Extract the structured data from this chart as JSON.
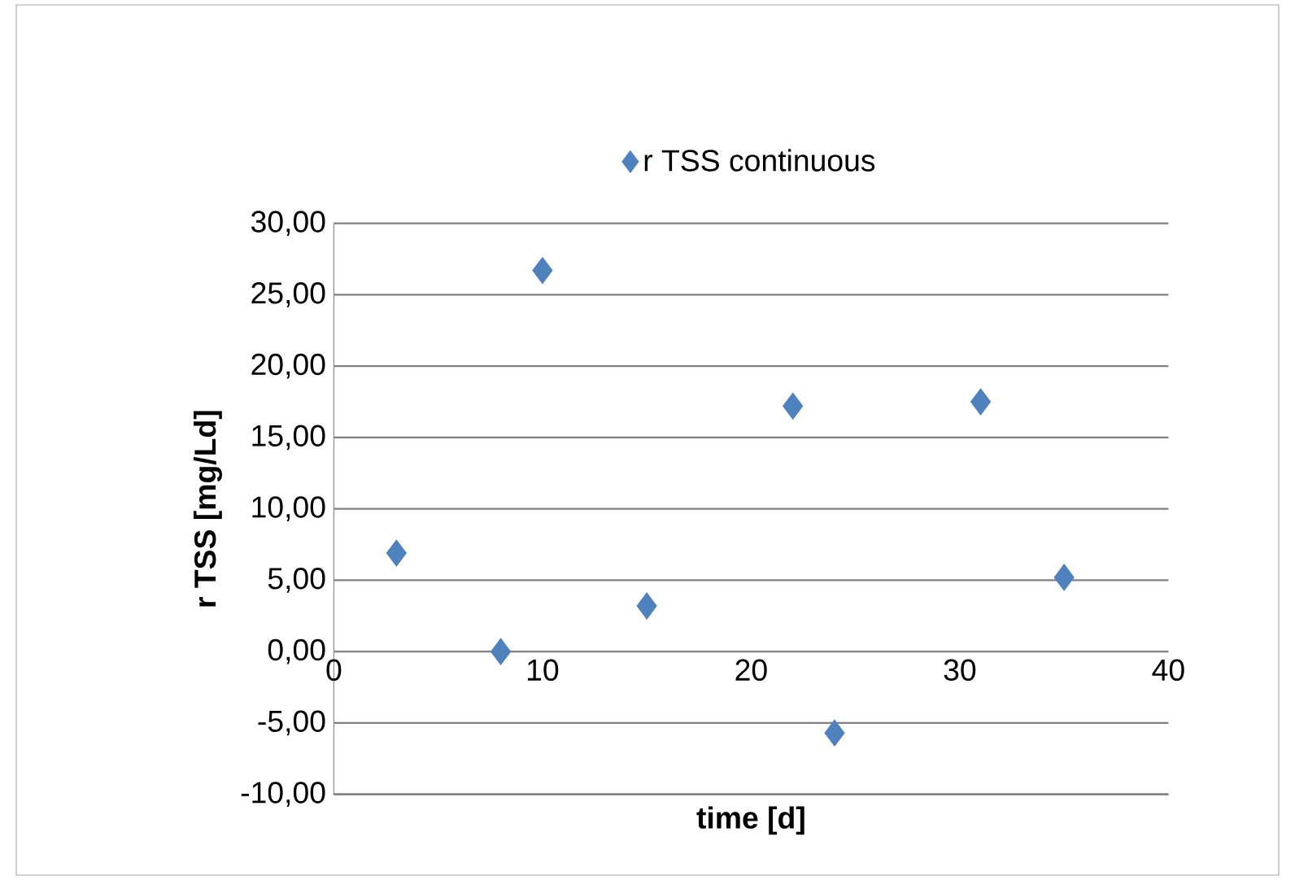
{
  "chart_data": {
    "type": "scatter",
    "xlabel": "time [d]",
    "ylabel": "r TSS [mg/Ld]",
    "series": [
      {
        "name": "r TSS continuous",
        "color": "#4f81bd",
        "x": [
          3,
          8,
          10,
          15,
          22,
          24,
          31,
          35
        ],
        "values": [
          6.9,
          0.0,
          26.7,
          3.2,
          17.2,
          -5.7,
          17.5,
          5.2
        ]
      }
    ],
    "xlim": [
      0,
      40
    ],
    "xticks": [
      0,
      10,
      20,
      30,
      40
    ],
    "ylim": [
      -10,
      30
    ],
    "yticks": [
      {
        "value": -10,
        "label": "-10,00"
      },
      {
        "value": -5,
        "label": "-5,00"
      },
      {
        "value": 0,
        "label": "0,00"
      },
      {
        "value": 5,
        "label": "5,00"
      },
      {
        "value": 10,
        "label": "10,00"
      },
      {
        "value": 15,
        "label": "15,00"
      },
      {
        "value": 20,
        "label": "20,00"
      },
      {
        "value": 25,
        "label": "25,00"
      },
      {
        "value": 30,
        "label": "30,00"
      }
    ],
    "grid": "y",
    "legend": "top",
    "marker": "diamond"
  }
}
